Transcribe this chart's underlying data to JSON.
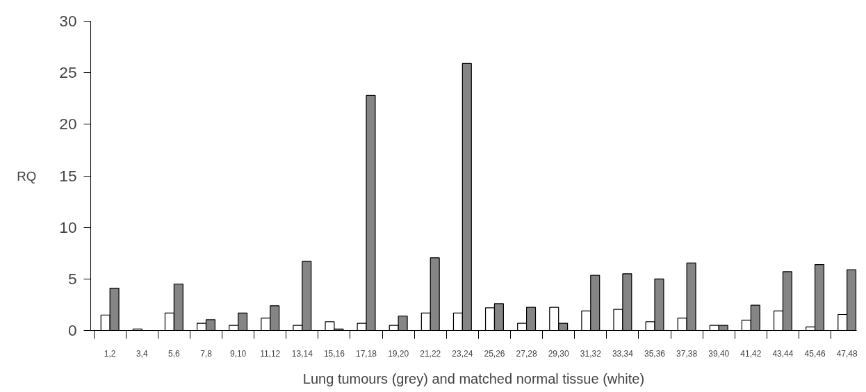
{
  "chart_data": {
    "type": "bar",
    "xlabel": "Lung tumours (grey) and matched normal tissue (white)",
    "ylabel": "RQ",
    "categories": [
      "1,2",
      "3,4",
      "5,6",
      "7,8",
      "9,10",
      "11,12",
      "13,14",
      "15,16",
      "17,18",
      "19,20",
      "21,22",
      "23,24",
      "25,26",
      "27,28",
      "29,30",
      "31,32",
      "33,34",
      "35,36",
      "37,38",
      "39,40",
      "41,42",
      "43,44",
      "45,46",
      "47,48"
    ],
    "series": [
      {
        "color": "#ffffff",
        "values": [
          1.5,
          0.15,
          1.7,
          0.7,
          0.5,
          1.2,
          0.5,
          0.85,
          0.7,
          0.5,
          1.7,
          1.7,
          2.2,
          0.7,
          2.25,
          1.9,
          2.05,
          0.85,
          1.2,
          0.5,
          1.0,
          1.9,
          0.35,
          1.55
        ]
      },
      {
        "color": "#858585",
        "values": [
          4.1,
          null,
          4.5,
          1.05,
          1.7,
          2.4,
          6.7,
          0.15,
          22.8,
          1.4,
          7.05,
          25.9,
          2.6,
          2.25,
          0.7,
          5.35,
          5.5,
          5.0,
          6.55,
          0.5,
          2.45,
          5.7,
          6.4,
          5.9
        ]
      }
    ],
    "ylim": [
      0,
      30
    ],
    "yticks": [
      0,
      5,
      10,
      15,
      20,
      25,
      30
    ],
    "grid": false
  }
}
